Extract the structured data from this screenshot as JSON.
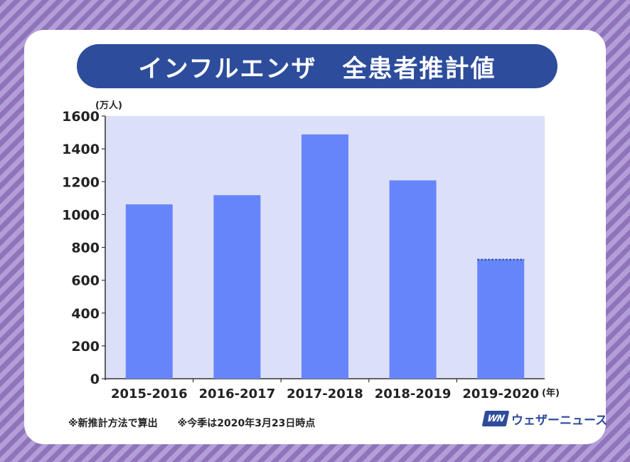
{
  "title": "インフルエンザ　全患者推計値",
  "footnotes": [
    "※新推計方法で算出",
    "※今季は2020年3月23日時点"
  ],
  "logo": {
    "mark": "WN",
    "text": "ウェザーニュース"
  },
  "colors": {
    "bar": "#6785fb",
    "plot_bg": "#dcdff8",
    "title_bg": "#2d4d9c",
    "dashed_line": "#2d4d9c"
  },
  "chart_data": {
    "type": "bar",
    "title": "インフルエンザ　全患者推計値",
    "xlabel": "(年)",
    "ylabel": "(万人)",
    "categories": [
      "2015-2016",
      "2016-2017",
      "2017-2018",
      "2018-2019",
      "2019-2020"
    ],
    "values": [
      1062,
      1118,
      1488,
      1208,
      726
    ],
    "ylim": [
      0,
      1600
    ],
    "yticks": [
      "0",
      "200",
      "400",
      "600",
      "800",
      "1000",
      "1200",
      "1400",
      "1600"
    ],
    "grid": false,
    "legend": "none",
    "annotations": [
      "dashed line at top of 2019-2020 bar"
    ]
  }
}
